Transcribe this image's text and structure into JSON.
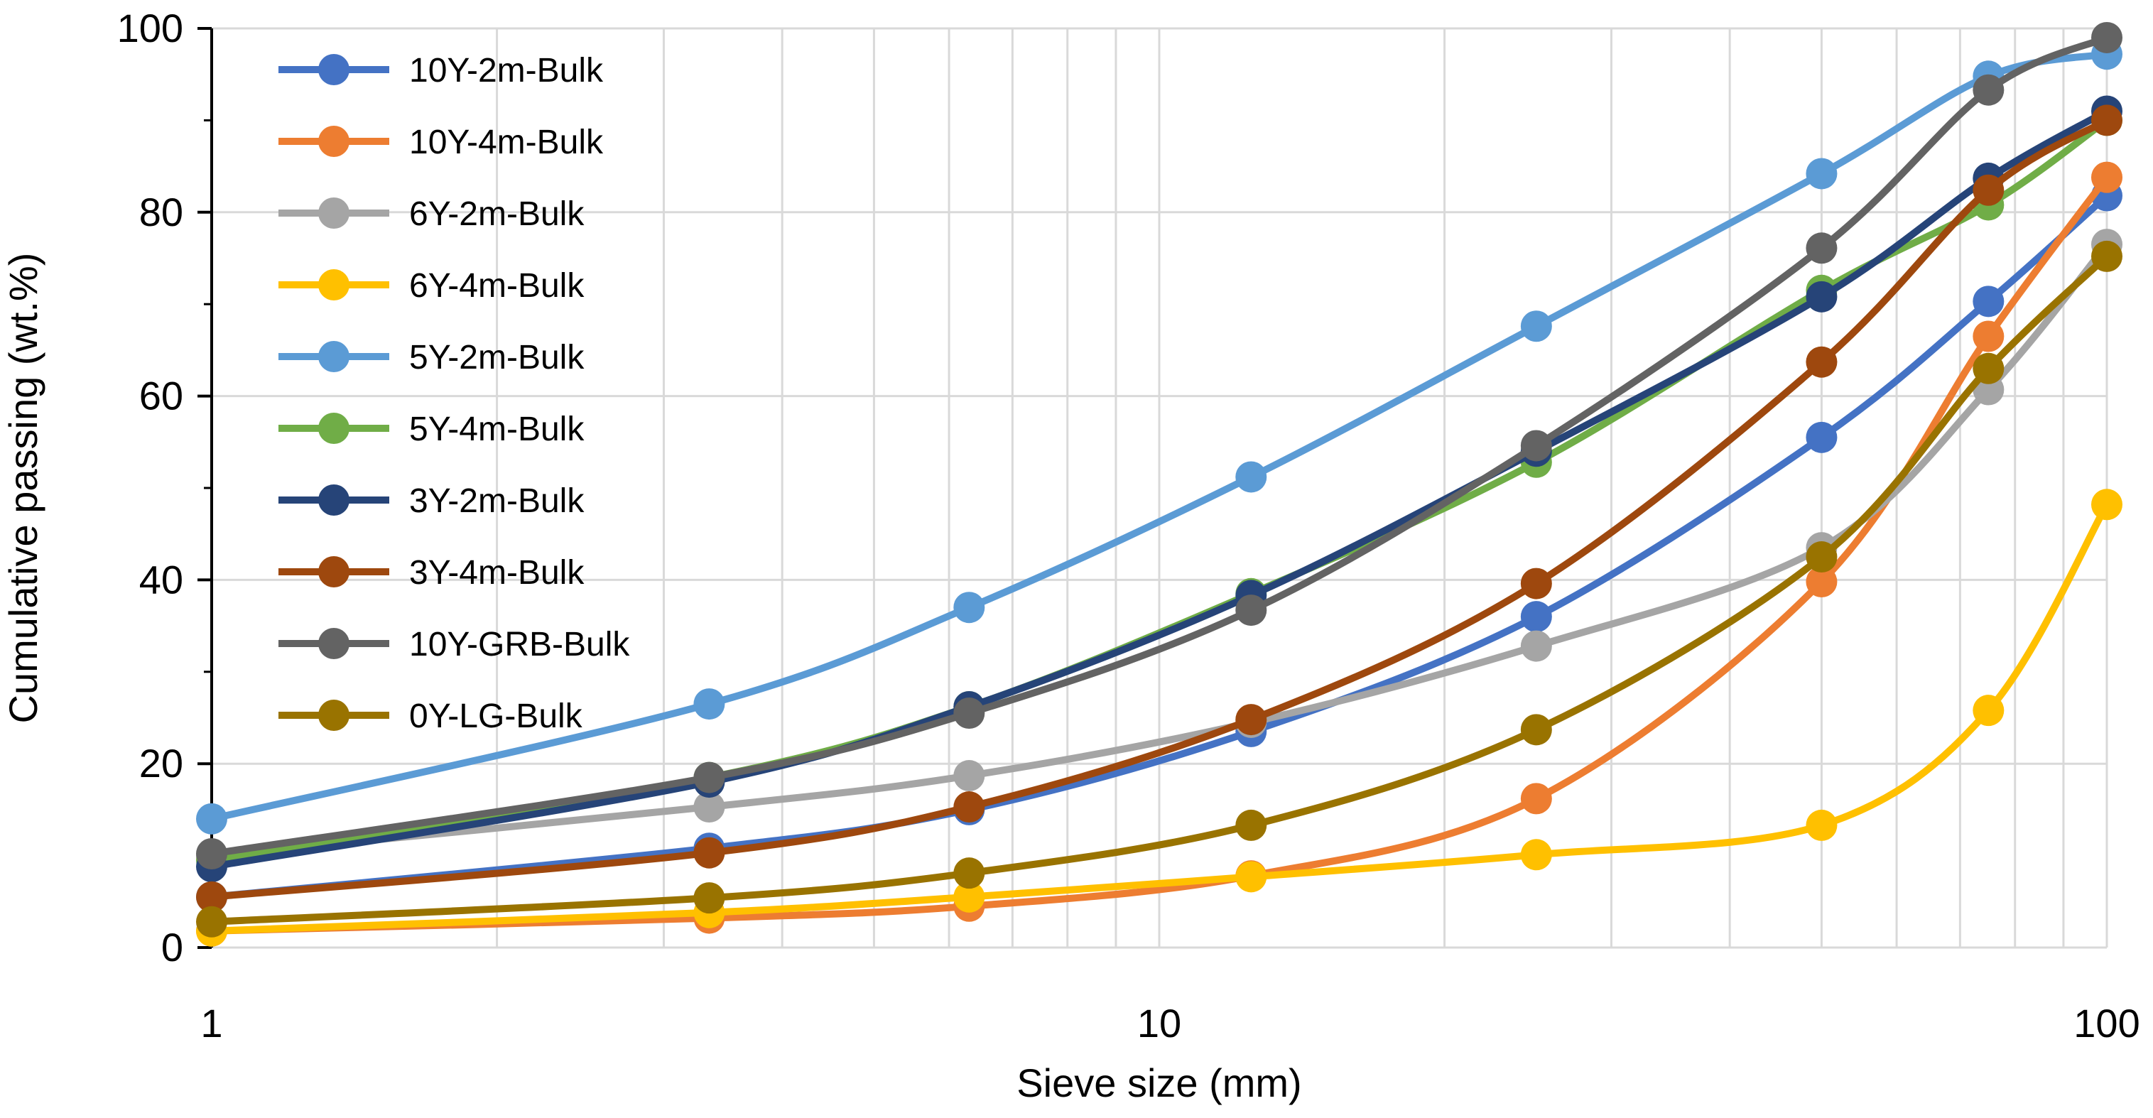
{
  "chart_data": {
    "type": "line",
    "xlabel": "Sieve size (mm)",
    "ylabel": "Cumulative passing (wt.%)",
    "xscale": "log",
    "xlim": [
      1,
      100
    ],
    "ylim": [
      0,
      100
    ],
    "xticks": [
      1,
      10,
      100
    ],
    "xtick_labels": [
      "1",
      "10",
      "100"
    ],
    "yticks": [
      0,
      20,
      40,
      60,
      80,
      100
    ],
    "ytick_labels": [
      "0",
      "20",
      "40",
      "60",
      "80",
      "100"
    ],
    "grid": true,
    "legend_position": "top-left",
    "x": [
      1,
      3.35,
      6.3,
      12.5,
      25,
      50,
      75,
      100
    ],
    "series": [
      {
        "name": "10Y-2m-Bulk",
        "color": "#4472C4",
        "values": [
          5.5,
          10.8,
          15,
          23.5,
          36,
          55.5,
          70.3,
          81.8
        ]
      },
      {
        "name": "10Y-4m-Bulk",
        "color": "#ED7D31",
        "values": [
          1.8,
          3.2,
          4.5,
          7.8,
          16.2,
          39.8,
          66.5,
          83.8
        ]
      },
      {
        "name": "6Y-2m-Bulk",
        "color": "#A5A5A5",
        "values": [
          10,
          15.3,
          18.7,
          24.5,
          32.8,
          43.5,
          60.7,
          76.5
        ]
      },
      {
        "name": "6Y-4m-Bulk",
        "color": "#FFC000",
        "values": [
          1.8,
          3.8,
          5.5,
          7.7,
          10.1,
          13.3,
          25.8,
          48.2
        ]
      },
      {
        "name": "5Y-2m-Bulk",
        "color": "#5B9BD5",
        "values": [
          14,
          26.5,
          37,
          51.2,
          67.6,
          84.2,
          94.8,
          97.2
        ]
      },
      {
        "name": "5Y-4m-Bulk",
        "color": "#70AD47",
        "values": [
          9.5,
          18.5,
          26.2,
          38.5,
          52.8,
          71.5,
          80.8,
          90
        ]
      },
      {
        "name": "3Y-2m-Bulk",
        "color": "#264478",
        "values": [
          8.8,
          18,
          26.2,
          38.3,
          54,
          70.8,
          83.7,
          91
        ]
      },
      {
        "name": "3Y-4m-Bulk",
        "color": "#9E480E",
        "values": [
          5.5,
          10.3,
          15.3,
          24.8,
          39.6,
          63.7,
          82.4,
          90
        ]
      },
      {
        "name": "10Y-GRB-Bulk",
        "color": "#636363",
        "values": [
          10.2,
          18.5,
          25.5,
          36.7,
          54.6,
          76.1,
          93.3,
          99
        ]
      },
      {
        "name": "0Y-LG-Bulk",
        "color": "#997300",
        "values": [
          2.8,
          5.4,
          8.1,
          13.3,
          23.7,
          42.5,
          63,
          75.2
        ]
      }
    ]
  }
}
